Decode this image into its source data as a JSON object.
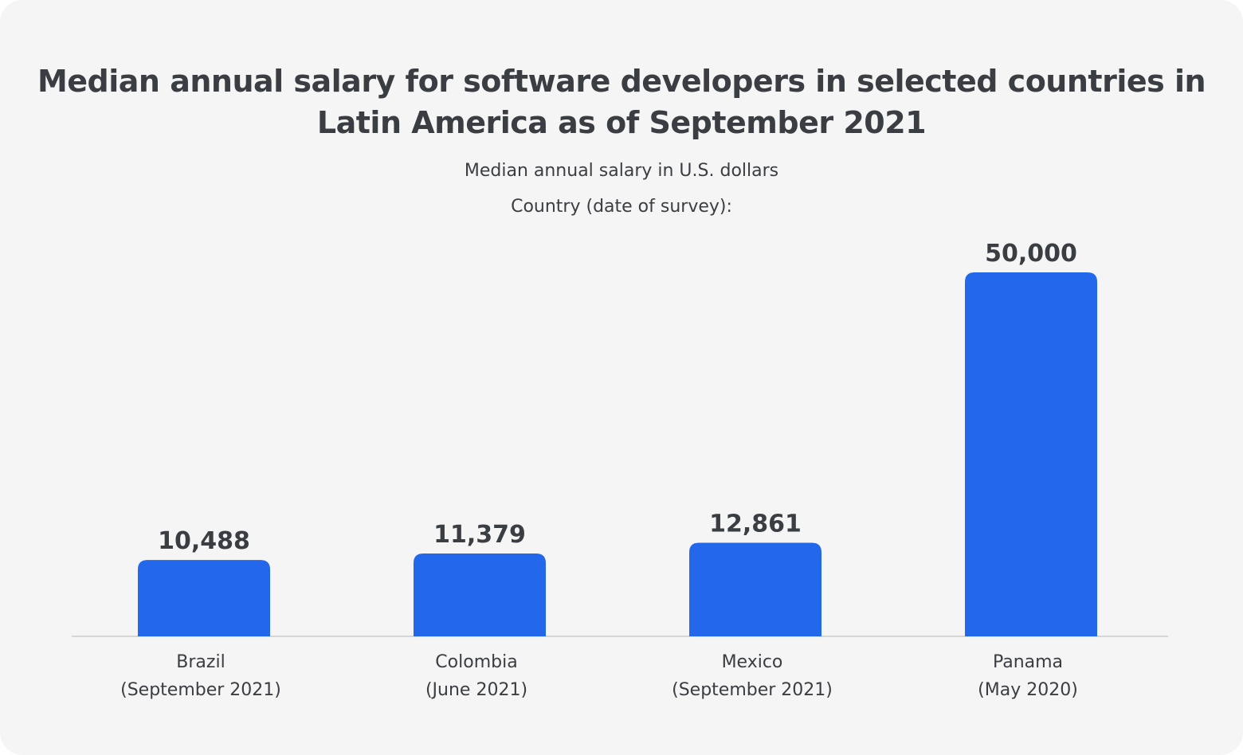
{
  "chart_data": {
    "type": "bar",
    "title": "Median annual salary for software developers in selected countries in Latin America as of September 2021",
    "ylabel": "Median annual salary in U.S. dollars",
    "xlabel": "Country (date of survey):",
    "categories": [
      [
        "Brazil",
        "(September 2021)"
      ],
      [
        "Colombia",
        "(June 2021)"
      ],
      [
        "Mexico",
        "(September 2021)"
      ],
      [
        "Panama",
        "(May 2020)"
      ]
    ],
    "values": [
      10488,
      11379,
      12861,
      50000
    ],
    "value_labels": [
      "10,488",
      "11,379",
      "12,861",
      "50,000"
    ],
    "ylim": [
      0,
      50000
    ],
    "grid": false,
    "bar_color": "#2368eb"
  }
}
